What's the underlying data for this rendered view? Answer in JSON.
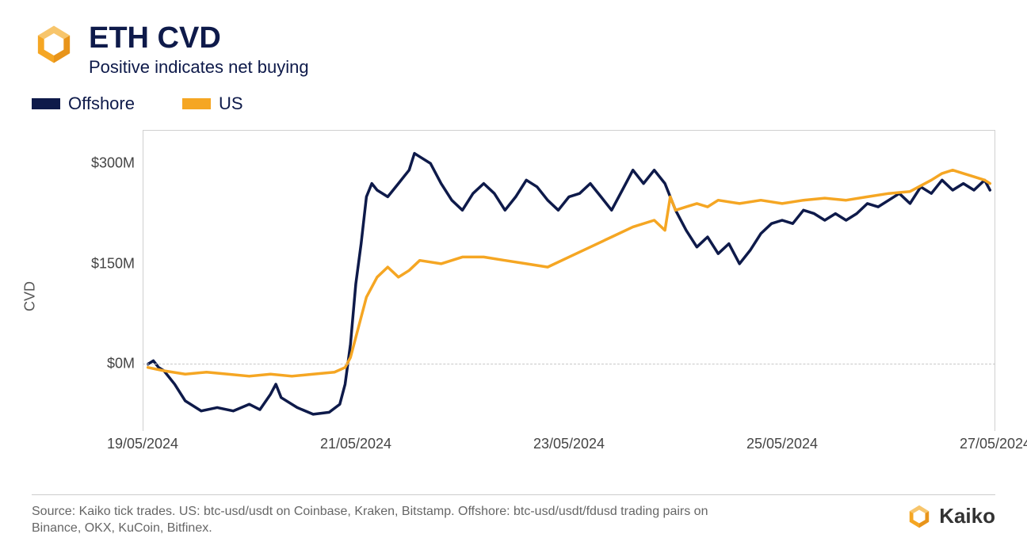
{
  "header": {
    "title": "ETH CVD",
    "subtitle": "Positive indicates net buying",
    "title_color": "#0e1a4a",
    "subtitle_color": "#0e1a4a",
    "title_fontsize": 38,
    "subtitle_fontsize": 22
  },
  "logo": {
    "name": "kaiko-logo-icon",
    "primary_color": "#f5a623",
    "secondary_color": "#f7c56b"
  },
  "legend": {
    "items": [
      {
        "label": "Offshore",
        "color": "#0e1a4a"
      },
      {
        "label": "US",
        "color": "#f5a623"
      }
    ],
    "fontsize": 22,
    "swatch_w": 36,
    "swatch_h": 14
  },
  "chart": {
    "type": "line",
    "ylabel": "CVD",
    "ylabel_fontsize": 18,
    "background_color": "#ffffff",
    "border_color": "#d0d0d0",
    "zero_line_color": "#c8c8c8",
    "line_width": 3.5,
    "x_range": [
      0,
      8
    ],
    "y_range": [
      -100,
      350
    ],
    "y_ticks": [
      {
        "value": 0,
        "label": "$0M"
      },
      {
        "value": 150,
        "label": "$150M"
      },
      {
        "value": 300,
        "label": "$300M"
      }
    ],
    "x_ticks": [
      {
        "value": 0,
        "label": "19/05/2024"
      },
      {
        "value": 2,
        "label": "21/05/2024"
      },
      {
        "value": 4,
        "label": "23/05/2024"
      },
      {
        "value": 6,
        "label": "25/05/2024"
      },
      {
        "value": 8,
        "label": "27/05/2024"
      }
    ],
    "series": [
      {
        "name": "Offshore",
        "color": "#0e1a4a",
        "data": [
          [
            0.05,
            0
          ],
          [
            0.1,
            5
          ],
          [
            0.15,
            -5
          ],
          [
            0.2,
            -10
          ],
          [
            0.3,
            -30
          ],
          [
            0.4,
            -55
          ],
          [
            0.55,
            -70
          ],
          [
            0.7,
            -65
          ],
          [
            0.85,
            -70
          ],
          [
            1.0,
            -60
          ],
          [
            1.1,
            -68
          ],
          [
            1.2,
            -45
          ],
          [
            1.25,
            -30
          ],
          [
            1.3,
            -50
          ],
          [
            1.45,
            -65
          ],
          [
            1.6,
            -75
          ],
          [
            1.75,
            -72
          ],
          [
            1.85,
            -60
          ],
          [
            1.9,
            -30
          ],
          [
            1.95,
            30
          ],
          [
            2.0,
            120
          ],
          [
            2.05,
            180
          ],
          [
            2.1,
            250
          ],
          [
            2.15,
            270
          ],
          [
            2.2,
            260
          ],
          [
            2.3,
            250
          ],
          [
            2.4,
            270
          ],
          [
            2.5,
            290
          ],
          [
            2.55,
            315
          ],
          [
            2.6,
            310
          ],
          [
            2.7,
            300
          ],
          [
            2.8,
            270
          ],
          [
            2.9,
            245
          ],
          [
            3.0,
            230
          ],
          [
            3.1,
            255
          ],
          [
            3.2,
            270
          ],
          [
            3.3,
            255
          ],
          [
            3.4,
            230
          ],
          [
            3.5,
            250
          ],
          [
            3.6,
            275
          ],
          [
            3.7,
            265
          ],
          [
            3.8,
            245
          ],
          [
            3.9,
            230
          ],
          [
            4.0,
            250
          ],
          [
            4.1,
            255
          ],
          [
            4.2,
            270
          ],
          [
            4.3,
            250
          ],
          [
            4.4,
            230
          ],
          [
            4.5,
            260
          ],
          [
            4.6,
            290
          ],
          [
            4.7,
            270
          ],
          [
            4.8,
            290
          ],
          [
            4.9,
            270
          ],
          [
            5.0,
            230
          ],
          [
            5.1,
            200
          ],
          [
            5.2,
            175
          ],
          [
            5.3,
            190
          ],
          [
            5.4,
            165
          ],
          [
            5.5,
            180
          ],
          [
            5.6,
            150
          ],
          [
            5.7,
            170
          ],
          [
            5.8,
            195
          ],
          [
            5.9,
            210
          ],
          [
            6.0,
            215
          ],
          [
            6.1,
            210
          ],
          [
            6.2,
            230
          ],
          [
            6.3,
            225
          ],
          [
            6.4,
            215
          ],
          [
            6.5,
            225
          ],
          [
            6.6,
            215
          ],
          [
            6.7,
            225
          ],
          [
            6.8,
            240
          ],
          [
            6.9,
            235
          ],
          [
            7.0,
            245
          ],
          [
            7.1,
            255
          ],
          [
            7.2,
            240
          ],
          [
            7.3,
            265
          ],
          [
            7.4,
            255
          ],
          [
            7.5,
            275
          ],
          [
            7.6,
            260
          ],
          [
            7.7,
            270
          ],
          [
            7.8,
            260
          ],
          [
            7.9,
            275
          ],
          [
            7.95,
            260
          ]
        ]
      },
      {
        "name": "US",
        "color": "#f5a623",
        "data": [
          [
            0.05,
            -5
          ],
          [
            0.2,
            -10
          ],
          [
            0.4,
            -15
          ],
          [
            0.6,
            -12
          ],
          [
            0.8,
            -15
          ],
          [
            1.0,
            -18
          ],
          [
            1.2,
            -15
          ],
          [
            1.4,
            -18
          ],
          [
            1.6,
            -15
          ],
          [
            1.8,
            -12
          ],
          [
            1.9,
            -5
          ],
          [
            1.95,
            10
          ],
          [
            2.0,
            40
          ],
          [
            2.05,
            70
          ],
          [
            2.1,
            100
          ],
          [
            2.2,
            130
          ],
          [
            2.3,
            145
          ],
          [
            2.4,
            130
          ],
          [
            2.5,
            140
          ],
          [
            2.6,
            155
          ],
          [
            2.8,
            150
          ],
          [
            3.0,
            160
          ],
          [
            3.2,
            160
          ],
          [
            3.4,
            155
          ],
          [
            3.6,
            150
          ],
          [
            3.8,
            145
          ],
          [
            4.0,
            160
          ],
          [
            4.2,
            175
          ],
          [
            4.4,
            190
          ],
          [
            4.6,
            205
          ],
          [
            4.8,
            215
          ],
          [
            4.9,
            200
          ],
          [
            4.95,
            250
          ],
          [
            5.0,
            230
          ],
          [
            5.1,
            235
          ],
          [
            5.2,
            240
          ],
          [
            5.3,
            235
          ],
          [
            5.4,
            245
          ],
          [
            5.6,
            240
          ],
          [
            5.8,
            245
          ],
          [
            6.0,
            240
          ],
          [
            6.2,
            245
          ],
          [
            6.4,
            248
          ],
          [
            6.6,
            245
          ],
          [
            6.8,
            250
          ],
          [
            7.0,
            255
          ],
          [
            7.2,
            258
          ],
          [
            7.4,
            275
          ],
          [
            7.5,
            285
          ],
          [
            7.6,
            290
          ],
          [
            7.7,
            285
          ],
          [
            7.8,
            280
          ],
          [
            7.9,
            275
          ],
          [
            7.95,
            270
          ]
        ]
      }
    ]
  },
  "footer": {
    "source": "Source: Kaiko tick trades. US: btc-usd/usdt on Coinbase, Kraken, Bitstamp. Offshore: btc-usd/usdt/fdusd trading pairs on Binance, OKX, KuCoin, Bitfinex.",
    "brand": "Kaiko",
    "source_color": "#666666",
    "source_fontsize": 16
  }
}
